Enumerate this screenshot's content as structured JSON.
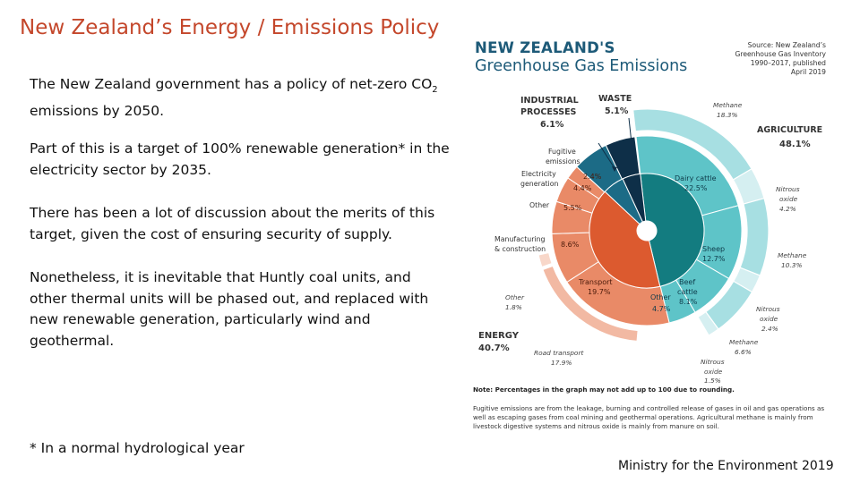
{
  "slide": {
    "title": "New Zealand’s Energy / Emissions Policy",
    "para1_pre": "The New Zealand government has a policy of net-zero CO",
    "para1_sub": "2",
    "para1_post": " emissions by 2050.",
    "para2": "Part of this is a target of 100% renewable generation* in the electricity sector by 2035.",
    "para3": "There has been a lot of discussion about the merits of this target, given the cost of ensuring security of supply.",
    "para4": "Nonetheless, it is inevitable that Huntly coal units, and other thermal units will be phased out, and replaced with new renewable generation, particularly wind and geothermal.",
    "footnote": "* In a normal hydrological year",
    "credit": "Ministry for the Environment 2019"
  },
  "infographic": {
    "title_line1": "NEW ZEALAND'S",
    "title_line2": "Greenhouse Gas Emissions",
    "source_line1": "Source: New Zealand’s",
    "source_line2": "Greenhouse Gas Inventory",
    "source_line3": "1990–2017, published",
    "source_line4": "April 2019",
    "note": "Note: Percentages in the graph may not add up to 100 due to rounding.",
    "fugitive_note": "Fugitive emissions are from the leakage, burning and controlled release of gases in oil and gas operations as well as escaping gases from coal mining and geothermal operations. Agricultural methane is mainly from livestock digestive systems and nitrous oxide is mainly from manure on soil."
  },
  "chart_data": {
    "type": "pie",
    "title": "NEW ZEALAND'S Greenhouse Gas Emissions",
    "unit": "% of gross emissions",
    "sectors": [
      {
        "name": "AGRICULTURE",
        "value": 48.1,
        "color": "#5ec4c8"
      },
      {
        "name": "ENERGY",
        "value": 40.7,
        "color": "#e98a67"
      },
      {
        "name": "INDUSTRIAL PROCESSES",
        "value": 6.1,
        "color": "#1c6b86"
      },
      {
        "name": "WASTE",
        "value": 5.1,
        "color": "#0e2f48"
      }
    ],
    "subcategories": [
      {
        "sector": "AGRICULTURE",
        "name": "Dairy cattle",
        "value": 22.5,
        "color": "#5ec4c8"
      },
      {
        "sector": "AGRICULTURE",
        "name": "Sheep",
        "value": 12.7,
        "color": "#5ec4c8"
      },
      {
        "sector": "AGRICULTURE",
        "name": "Beef cattle",
        "value": 8.1,
        "color": "#5ec4c8"
      },
      {
        "sector": "AGRICULTURE",
        "name": "Other",
        "value": 4.7,
        "color": "#5ec4c8"
      },
      {
        "sector": "ENERGY",
        "name": "Transport",
        "value": 19.7,
        "color": "#e98a67"
      },
      {
        "sector": "ENERGY",
        "name": "Manufacturing & construction",
        "value": 8.6,
        "color": "#e98a67"
      },
      {
        "sector": "ENERGY",
        "name": "Other",
        "value": 5.5,
        "color": "#e98a67"
      },
      {
        "sector": "ENERGY",
        "name": "Electricity generation",
        "value": 4.4,
        "color": "#e98a67"
      },
      {
        "sector": "ENERGY",
        "name": "Fugitive emissions",
        "value": 2.4,
        "color": "#e98a67"
      },
      {
        "sector": "INDUSTRIAL PROCESSES",
        "name": "",
        "value": 6.1,
        "color": "#1c6b86"
      },
      {
        "sector": "WASTE",
        "name": "",
        "value": 5.1,
        "color": "#0e2f48"
      }
    ],
    "gases": [
      {
        "sector": "AGRICULTURE",
        "name": "Methane",
        "value": 18.3
      },
      {
        "sector": "AGRICULTURE",
        "name": "Nitrous oxide",
        "value": 4.2
      },
      {
        "sector": "AGRICULTURE",
        "name": "Methane",
        "value": 10.3
      },
      {
        "sector": "AGRICULTURE",
        "name": "Nitrous oxide",
        "value": 2.4
      },
      {
        "sector": "AGRICULTURE",
        "name": "Methane",
        "value": 6.6
      },
      {
        "sector": "AGRICULTURE",
        "name": "Nitrous oxide",
        "value": 1.5
      },
      {
        "sector": "ENERGY",
        "name": "Road transport",
        "value": 17.9
      },
      {
        "sector": "ENERGY",
        "name": "Other",
        "value": 1.8
      }
    ],
    "sector_label_text": {
      "agriculture": "AGRICULTURE",
      "agriculture_pct": "48.1%",
      "energy": "ENERGY",
      "energy_pct": "40.7%",
      "industrial_line1": "INDUSTRIAL",
      "industrial_line2": "PROCESSES",
      "industrial_pct": "6.1%",
      "waste": "WASTE",
      "waste_pct": "5.1%"
    },
    "sub_label_text": {
      "dairy": "Dairy cattle",
      "dairy_pct": "22.5%",
      "sheep": "Sheep",
      "sheep_pct": "12.7%",
      "beef_line1": "Beef",
      "beef_line2": "cattle",
      "beef_pct": "8.1%",
      "agri_other": "Other",
      "agri_other_pct": "4.7%",
      "transport": "Transport",
      "transport_pct": "19.7%",
      "manufacturing_line1": "Manufacturing",
      "manufacturing_line2": "& construction",
      "manufacturing_pct": "8.6%",
      "energy_other": "Other",
      "energy_other_pct": "5.5%",
      "electricity_line1": "Electricity",
      "electricity_line2": "generation",
      "electricity_pct": "4.4%",
      "fugitive_line1": "Fugitive",
      "fugitive_line2": "emissions",
      "fugitive_pct": "2.4%"
    },
    "gas_label_text": {
      "methane1": "Methane",
      "methane1_pct": "18.3%",
      "nitrous1_line1": "Nitrous",
      "nitrous1_line2": "oxide",
      "nitrous1_pct": "4.2%",
      "methane2": "Methane",
      "methane2_pct": "10.3%",
      "nitrous2_line1": "Nitrous",
      "nitrous2_line2": "oxide",
      "nitrous2_pct": "2.4%",
      "methane3": "Methane",
      "methane3_pct": "6.6%",
      "nitrous3_line1": "Nitrous",
      "nitrous3_line2": "oxide",
      "nitrous3_pct": "1.5%",
      "road": "Road transport",
      "road_pct": "17.9%",
      "energy_other": "Other",
      "energy_other_pct": "1.8%"
    },
    "colors": {
      "agri_outer": "#a7dfe2",
      "energy_outer": "#f2b9a3",
      "agri_sub_border": "#ffffff"
    }
  }
}
